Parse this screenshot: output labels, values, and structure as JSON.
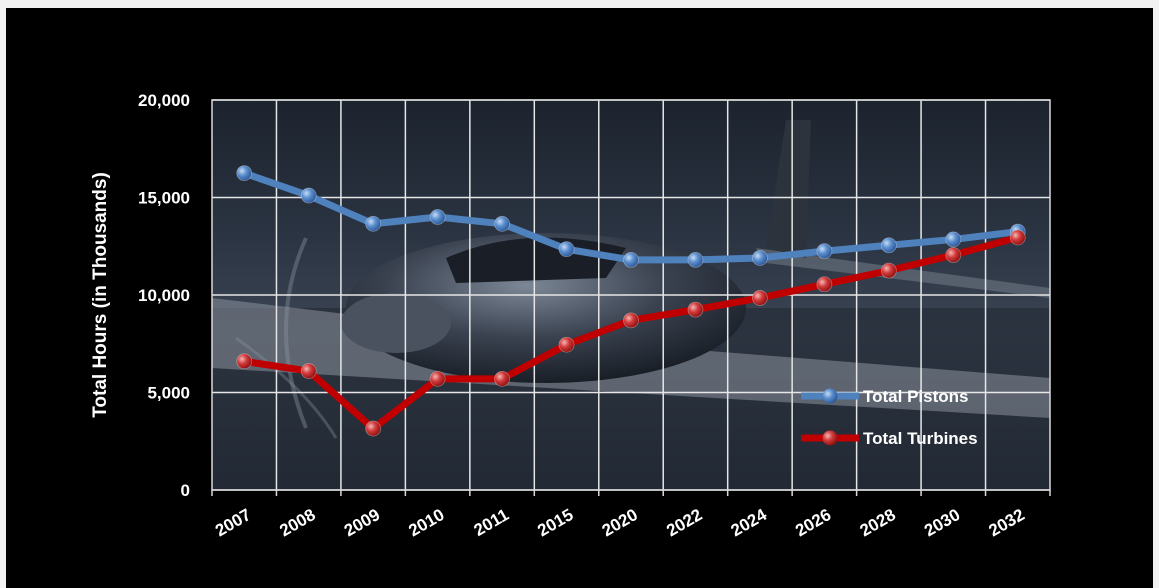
{
  "chart_data": {
    "type": "line",
    "title": "",
    "xlabel": "",
    "ylabel": "Total Hours (in Thousands)",
    "categories": [
      "2007",
      "2008",
      "2009",
      "2010",
      "2011",
      "2015",
      "2020",
      "2022",
      "2024",
      "2026",
      "2028",
      "2030",
      "2032"
    ],
    "ylim": [
      0,
      20000
    ],
    "yticks": [
      "0",
      "5,000",
      "10,000",
      "15,000",
      "20,000"
    ],
    "ytick_values": [
      0,
      5000,
      10000,
      15000,
      20000
    ],
    "grid": true,
    "legend_position": "lower-right",
    "background": "photo of a small propeller aircraft in flight",
    "series": [
      {
        "name": "Total Pistons",
        "color": "#4f81bd",
        "values": [
          16250,
          15100,
          13650,
          14000,
          13650,
          12350,
          11800,
          11800,
          11900,
          12250,
          12550,
          12850,
          13250
        ]
      },
      {
        "name": "Total Turbines",
        "color": "#c00000",
        "values": [
          6600,
          6100,
          3150,
          5700,
          5700,
          7450,
          8700,
          9250,
          9850,
          10550,
          11250,
          12050,
          12950
        ]
      }
    ]
  }
}
